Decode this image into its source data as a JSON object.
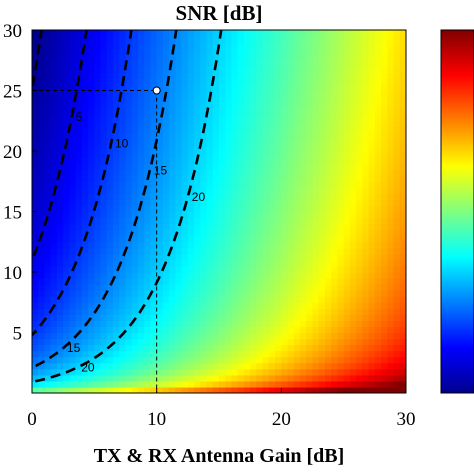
{
  "chart_data": {
    "type": "heatmap",
    "title": "SNR [dB]",
    "xlabel": "TX & RX Antenna Gain [dB]",
    "ylabel": "",
    "xlim": [
      0,
      30
    ],
    "ylim": [
      0,
      30
    ],
    "x_ticks": [
      "0",
      "10",
      "20",
      "30"
    ],
    "y_ticks": [
      "5",
      "10",
      "15",
      "20",
      "25",
      "30"
    ],
    "colormap": "jet",
    "colorbar": {
      "placement": "right",
      "tick_labels": []
    },
    "contours": [
      {
        "label": "0",
        "level": 0
      },
      {
        "label": "5",
        "level": 5
      },
      {
        "label": "10",
        "level": 10
      },
      {
        "label": "15",
        "level": 15
      },
      {
        "label": "20",
        "level": 20
      }
    ],
    "marked_point": {
      "x": 10,
      "y": 25,
      "guide_lines": "dashed"
    }
  }
}
